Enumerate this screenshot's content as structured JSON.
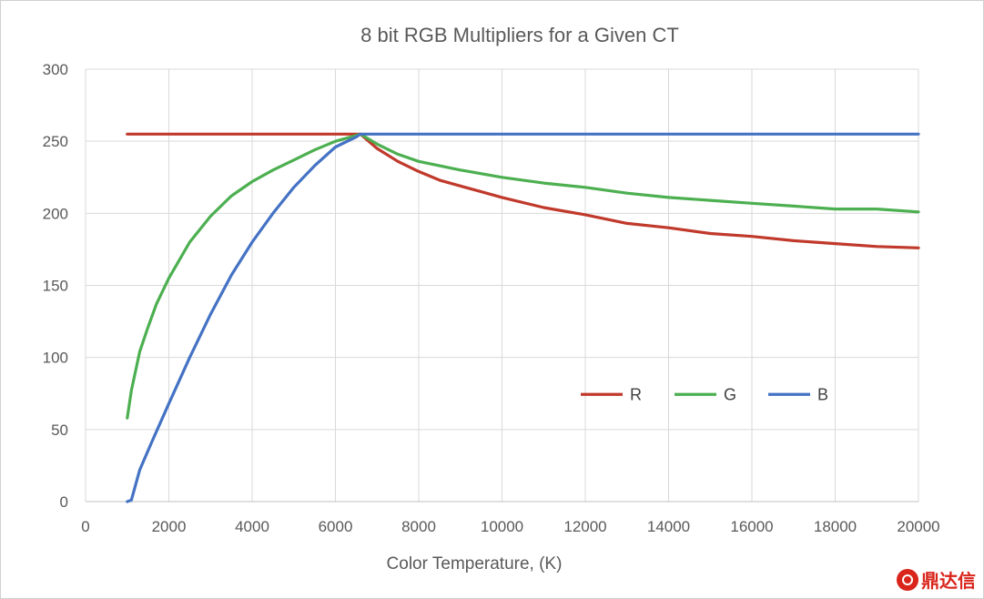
{
  "chart_data": {
    "type": "line",
    "title": "8 bit RGB Multipliers for a Given CT",
    "xlabel": "Color Temperature, (K)",
    "ylabel": "",
    "xlim": [
      0,
      20000
    ],
    "ylim": [
      0,
      300
    ],
    "xticks": [
      0,
      2000,
      4000,
      6000,
      8000,
      10000,
      12000,
      14000,
      16000,
      18000,
      20000
    ],
    "yticks": [
      0,
      50,
      100,
      150,
      200,
      250,
      300
    ],
    "grid": true,
    "legend_position": "inside-right",
    "series": [
      {
        "name": "R",
        "color": "#c0392b",
        "x": [
          1000,
          6600,
          7000,
          7500,
          8000,
          8500,
          9000,
          9500,
          10000,
          11000,
          12000,
          13000,
          14000,
          15000,
          16000,
          17000,
          18000,
          19000,
          20000
        ],
        "y": [
          255,
          255,
          245,
          236,
          229,
          223,
          219,
          215,
          211,
          204,
          199,
          193,
          190,
          186,
          184,
          181,
          179,
          177,
          176
        ]
      },
      {
        "name": "G",
        "color": "#4caf50",
        "x": [
          1000,
          1100,
          1300,
          1500,
          1700,
          2000,
          2500,
          3000,
          3500,
          4000,
          4500,
          5000,
          5500,
          6000,
          6500,
          6600,
          7000,
          7500,
          8000,
          9000,
          10000,
          11000,
          12000,
          13000,
          14000,
          15000,
          16000,
          17000,
          18000,
          19000,
          20000
        ],
        "y": [
          58,
          77,
          104,
          121,
          137,
          155,
          180,
          198,
          212,
          222,
          230,
          237,
          244,
          250,
          254,
          255,
          248,
          241,
          236,
          230,
          225,
          221,
          218,
          214,
          211,
          209,
          207,
          205,
          203,
          203,
          201
        ]
      },
      {
        "name": "B",
        "color": "#4472c4",
        "x": [
          1000,
          1100,
          1300,
          1600,
          2000,
          2500,
          3000,
          3500,
          4000,
          4500,
          5000,
          5500,
          6000,
          6500,
          6600,
          20000
        ],
        "y": [
          0,
          1,
          22,
          42,
          68,
          100,
          130,
          157,
          180,
          200,
          218,
          233,
          246,
          253,
          255,
          255
        ]
      }
    ]
  },
  "watermark": {
    "text": "鼎达信",
    "icon": "dingdaxin-logo-icon"
  }
}
